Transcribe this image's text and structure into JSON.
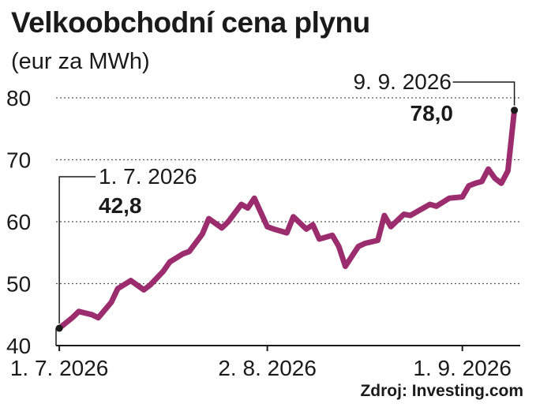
{
  "chart_data": {
    "type": "line",
    "title": "Velkoobchodní cena plynu",
    "subtitle": "(eur za MWh)",
    "source": "Zdroj: Investing.com",
    "ylim": [
      40,
      80
    ],
    "yticks": [
      40,
      50,
      60,
      70,
      80
    ],
    "xticks": [
      {
        "date": "2026-07-01",
        "label": "1. 7. 2026"
      },
      {
        "date": "2026-08-02",
        "label": "2. 8. 2026"
      },
      {
        "date": "2026-09-01",
        "label": "1. 9. 2026"
      }
    ],
    "grid": true,
    "line_color": "#9b2d6e",
    "series": [
      {
        "name": "",
        "points": [
          [
            "2026-07-01",
            42.8
          ],
          [
            "2026-07-03",
            44.5
          ],
          [
            "2026-07-04",
            45.5
          ],
          [
            "2026-07-06",
            45.0
          ],
          [
            "2026-07-07",
            44.5
          ],
          [
            "2026-07-09",
            47.0
          ],
          [
            "2026-07-10",
            49.2
          ],
          [
            "2026-07-12",
            50.5
          ],
          [
            "2026-07-14",
            49.0
          ],
          [
            "2026-07-15",
            49.8
          ],
          [
            "2026-07-17",
            52.0
          ],
          [
            "2026-07-18",
            53.5
          ],
          [
            "2026-07-20",
            54.8
          ],
          [
            "2026-07-21",
            55.2
          ],
          [
            "2026-07-23",
            58.0
          ],
          [
            "2026-07-24",
            60.5
          ],
          [
            "2026-07-26",
            59.0
          ],
          [
            "2026-07-27",
            60.0
          ],
          [
            "2026-07-29",
            62.8
          ],
          [
            "2026-07-30",
            62.2
          ],
          [
            "2026-07-31",
            63.8
          ],
          [
            "2026-08-02",
            59.2
          ],
          [
            "2026-08-03",
            58.8
          ],
          [
            "2026-08-05",
            58.2
          ],
          [
            "2026-08-06",
            60.8
          ],
          [
            "2026-08-08",
            58.8
          ],
          [
            "2026-08-09",
            59.5
          ],
          [
            "2026-08-10",
            57.2
          ],
          [
            "2026-08-12",
            57.8
          ],
          [
            "2026-08-13",
            56.0
          ],
          [
            "2026-08-14",
            52.8
          ],
          [
            "2026-08-16",
            56.0
          ],
          [
            "2026-08-17",
            56.5
          ],
          [
            "2026-08-19",
            57.0
          ],
          [
            "2026-08-20",
            61.0
          ],
          [
            "2026-08-21",
            59.2
          ],
          [
            "2026-08-23",
            61.2
          ],
          [
            "2026-08-24",
            61.0
          ],
          [
            "2026-08-26",
            62.2
          ],
          [
            "2026-08-27",
            62.8
          ],
          [
            "2026-08-28",
            62.5
          ],
          [
            "2026-08-30",
            63.8
          ],
          [
            "2026-09-01",
            64.0
          ],
          [
            "2026-09-02",
            65.8
          ],
          [
            "2026-09-03",
            66.2
          ],
          [
            "2026-09-04",
            66.5
          ],
          [
            "2026-09-05",
            68.5
          ],
          [
            "2026-09-06",
            67.0
          ],
          [
            "2026-09-07",
            66.2
          ],
          [
            "2026-09-08",
            68.2
          ],
          [
            "2026-09-09",
            78.0
          ]
        ]
      }
    ],
    "annotations": [
      {
        "date_label": "1. 7. 2026",
        "value_label": "42,8",
        "x": "2026-07-01",
        "y": 42.8
      },
      {
        "date_label": "9. 9. 2026",
        "value_label": "78,0",
        "x": "2026-09-09",
        "y": 78.0
      }
    ]
  }
}
